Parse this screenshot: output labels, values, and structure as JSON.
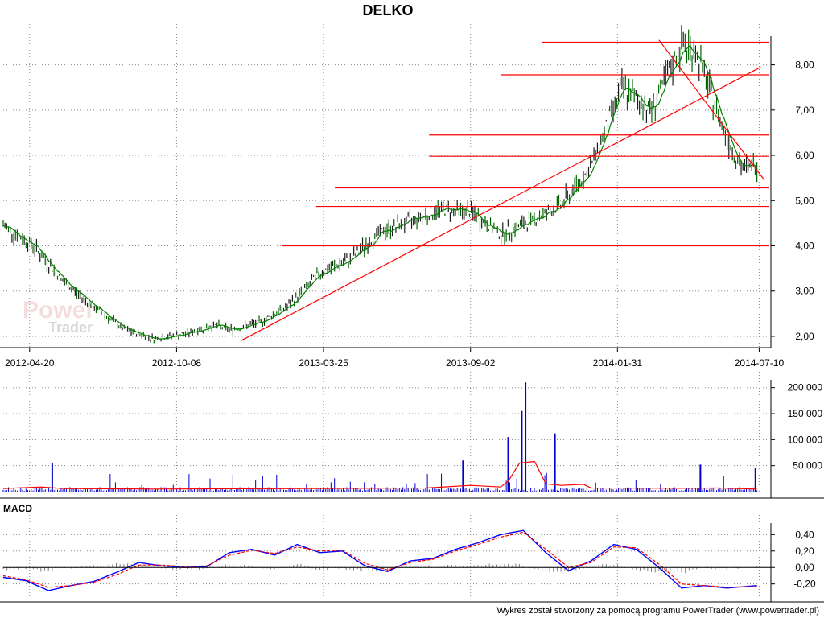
{
  "title": "DELKO",
  "footer": "Wykres został stworzony za pomocą programu PowerTrader (www.powertrader.pl)",
  "watermark": [
    "Power",
    "Trader"
  ],
  "colors": {
    "price_up": "#1a1a1a",
    "price_ma": "#008000",
    "levels": "#ff0000",
    "volume_bars": "#0000cc",
    "volume_ma": "#ff0000",
    "macd_line": "#0000ff",
    "signal_line": "#ff0000",
    "histogram": "#808080"
  },
  "chart_data": [
    {
      "type": "line",
      "name": "price",
      "title": "DELKO",
      "y_ticks": [
        "8,00",
        "7,00",
        "6,00",
        "5,00",
        "4,00",
        "3,00",
        "2,00"
      ],
      "x_ticks": [
        "2012-04-20",
        "2012-10-08",
        "2013-03-25",
        "2013-09-02",
        "2014-01-31",
        "2014-07-10"
      ],
      "ylim": [
        1.75,
        8.9
      ],
      "grid": true,
      "x": [
        0,
        4,
        8,
        12,
        16,
        20,
        24,
        28,
        30,
        34,
        38,
        42,
        46,
        50,
        54,
        58,
        62,
        66,
        70,
        74,
        78,
        82,
        86,
        88,
        90,
        92,
        94,
        96,
        98,
        100
      ],
      "close": [
        4.45,
        4.0,
        3.2,
        2.65,
        2.15,
        1.95,
        2.05,
        2.25,
        2.15,
        2.3,
        2.7,
        3.4,
        3.7,
        4.3,
        4.55,
        4.8,
        4.75,
        4.25,
        4.55,
        4.9,
        5.75,
        7.5,
        7.0,
        7.7,
        8.45,
        8.25,
        7.3,
        6.4,
        5.7,
        5.8
      ],
      "horizontal_levels": [
        8.5,
        7.78,
        6.45,
        5.98,
        5.28,
        4.87,
        4.0
      ],
      "trendlines": [
        {
          "from": [
            31.5,
            1.9
          ],
          "to": [
            100.5,
            7.95
          ]
        },
        {
          "from": [
            87,
            8.55
          ],
          "to": [
            101,
            5.45
          ]
        }
      ]
    },
    {
      "type": "bar",
      "name": "volume",
      "y_ticks": [
        "200 000",
        "150 000",
        "100 000",
        "50 000"
      ],
      "ylim": [
        0,
        215000
      ],
      "spikes": [
        {
          "x": 6.5,
          "v": 55000
        },
        {
          "x": 61,
          "v": 60000
        },
        {
          "x": 67,
          "v": 105000
        },
        {
          "x": 68.8,
          "v": 155000
        },
        {
          "x": 69.3,
          "v": 210000
        },
        {
          "x": 73.2,
          "v": 112000
        },
        {
          "x": 92.5,
          "v": 52000
        },
        {
          "x": 99.8,
          "v": 46000
        }
      ],
      "baseline": 8000
    },
    {
      "type": "line",
      "name": "macd",
      "label": "MACD",
      "y_ticks": [
        "0,40",
        "0,20",
        "0,00",
        "-0,20"
      ],
      "ylim": [
        -0.34,
        0.54
      ],
      "x": [
        0,
        3,
        6,
        9,
        12,
        15,
        18,
        21,
        24,
        27,
        30,
        33,
        36,
        39,
        42,
        45,
        48,
        51,
        54,
        57,
        60,
        63,
        66,
        69,
        72,
        75,
        78,
        81,
        84,
        87,
        90,
        93,
        96,
        100
      ],
      "macd": [
        -0.12,
        -0.16,
        -0.28,
        -0.22,
        -0.17,
        -0.06,
        0.06,
        0.02,
        0.0,
        0.01,
        0.18,
        0.22,
        0.15,
        0.28,
        0.18,
        0.2,
        0.02,
        -0.05,
        0.08,
        0.11,
        0.22,
        0.3,
        0.4,
        0.45,
        0.18,
        -0.04,
        0.08,
        0.28,
        0.22,
        0.0,
        -0.25,
        -0.22,
        -0.25,
        -0.22
      ],
      "signal": [
        -0.1,
        -0.15,
        -0.24,
        -0.22,
        -0.18,
        -0.09,
        0.03,
        0.03,
        0.01,
        0.02,
        0.15,
        0.21,
        0.17,
        0.25,
        0.2,
        0.21,
        0.05,
        -0.03,
        0.06,
        0.1,
        0.2,
        0.28,
        0.37,
        0.43,
        0.22,
        0.0,
        0.06,
        0.25,
        0.24,
        0.04,
        -0.2,
        -0.22,
        -0.24,
        -0.23
      ]
    }
  ]
}
